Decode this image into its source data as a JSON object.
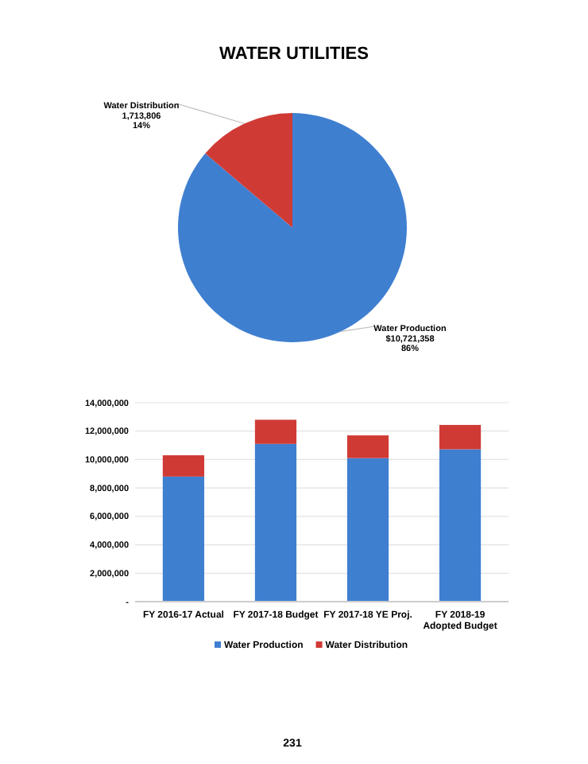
{
  "chart_data": [
    {
      "type": "pie",
      "title": "WATER UTILITIES",
      "categories": [
        "Water Production",
        "Water Distribution"
      ],
      "values": [
        10721358,
        1713806
      ],
      "colors": [
        "#3f7fd0",
        "#d03a35"
      ],
      "value_labels": [
        "$10,721,358\n86%",
        "1,713,806\n14%"
      ]
    },
    {
      "type": "bar",
      "stacked": true,
      "categories": [
        "FY 2016-17 Actual",
        "FY 2017-18 Budget",
        "FY 2017-18 YE Proj.",
        "FY 2018-19 Adopted Budget"
      ],
      "series": [
        {
          "name": "Water Production",
          "color": "#3f7fd0",
          "values": [
            8800000,
            11100000,
            10100000,
            10721358
          ]
        },
        {
          "name": "Water Distribution",
          "color": "#d03a35",
          "values": [
            1500000,
            1700000,
            1600000,
            1713806
          ]
        }
      ],
      "ylim": [
        0,
        14000000
      ],
      "yticks": [
        {
          "value": 0,
          "label": "-"
        },
        {
          "value": 2000000,
          "label": "2,000,000"
        },
        {
          "value": 4000000,
          "label": "4,000,000"
        },
        {
          "value": 6000000,
          "label": "6,000,000"
        },
        {
          "value": 8000000,
          "label": "8,000,000"
        },
        {
          "value": 10000000,
          "label": "10,000,000"
        },
        {
          "value": 12000000,
          "label": "12,000,000"
        },
        {
          "value": 14000000,
          "label": "14,000,000"
        }
      ],
      "grid": "y",
      "legend": "bottom",
      "annotations": [
        "231"
      ]
    }
  ]
}
